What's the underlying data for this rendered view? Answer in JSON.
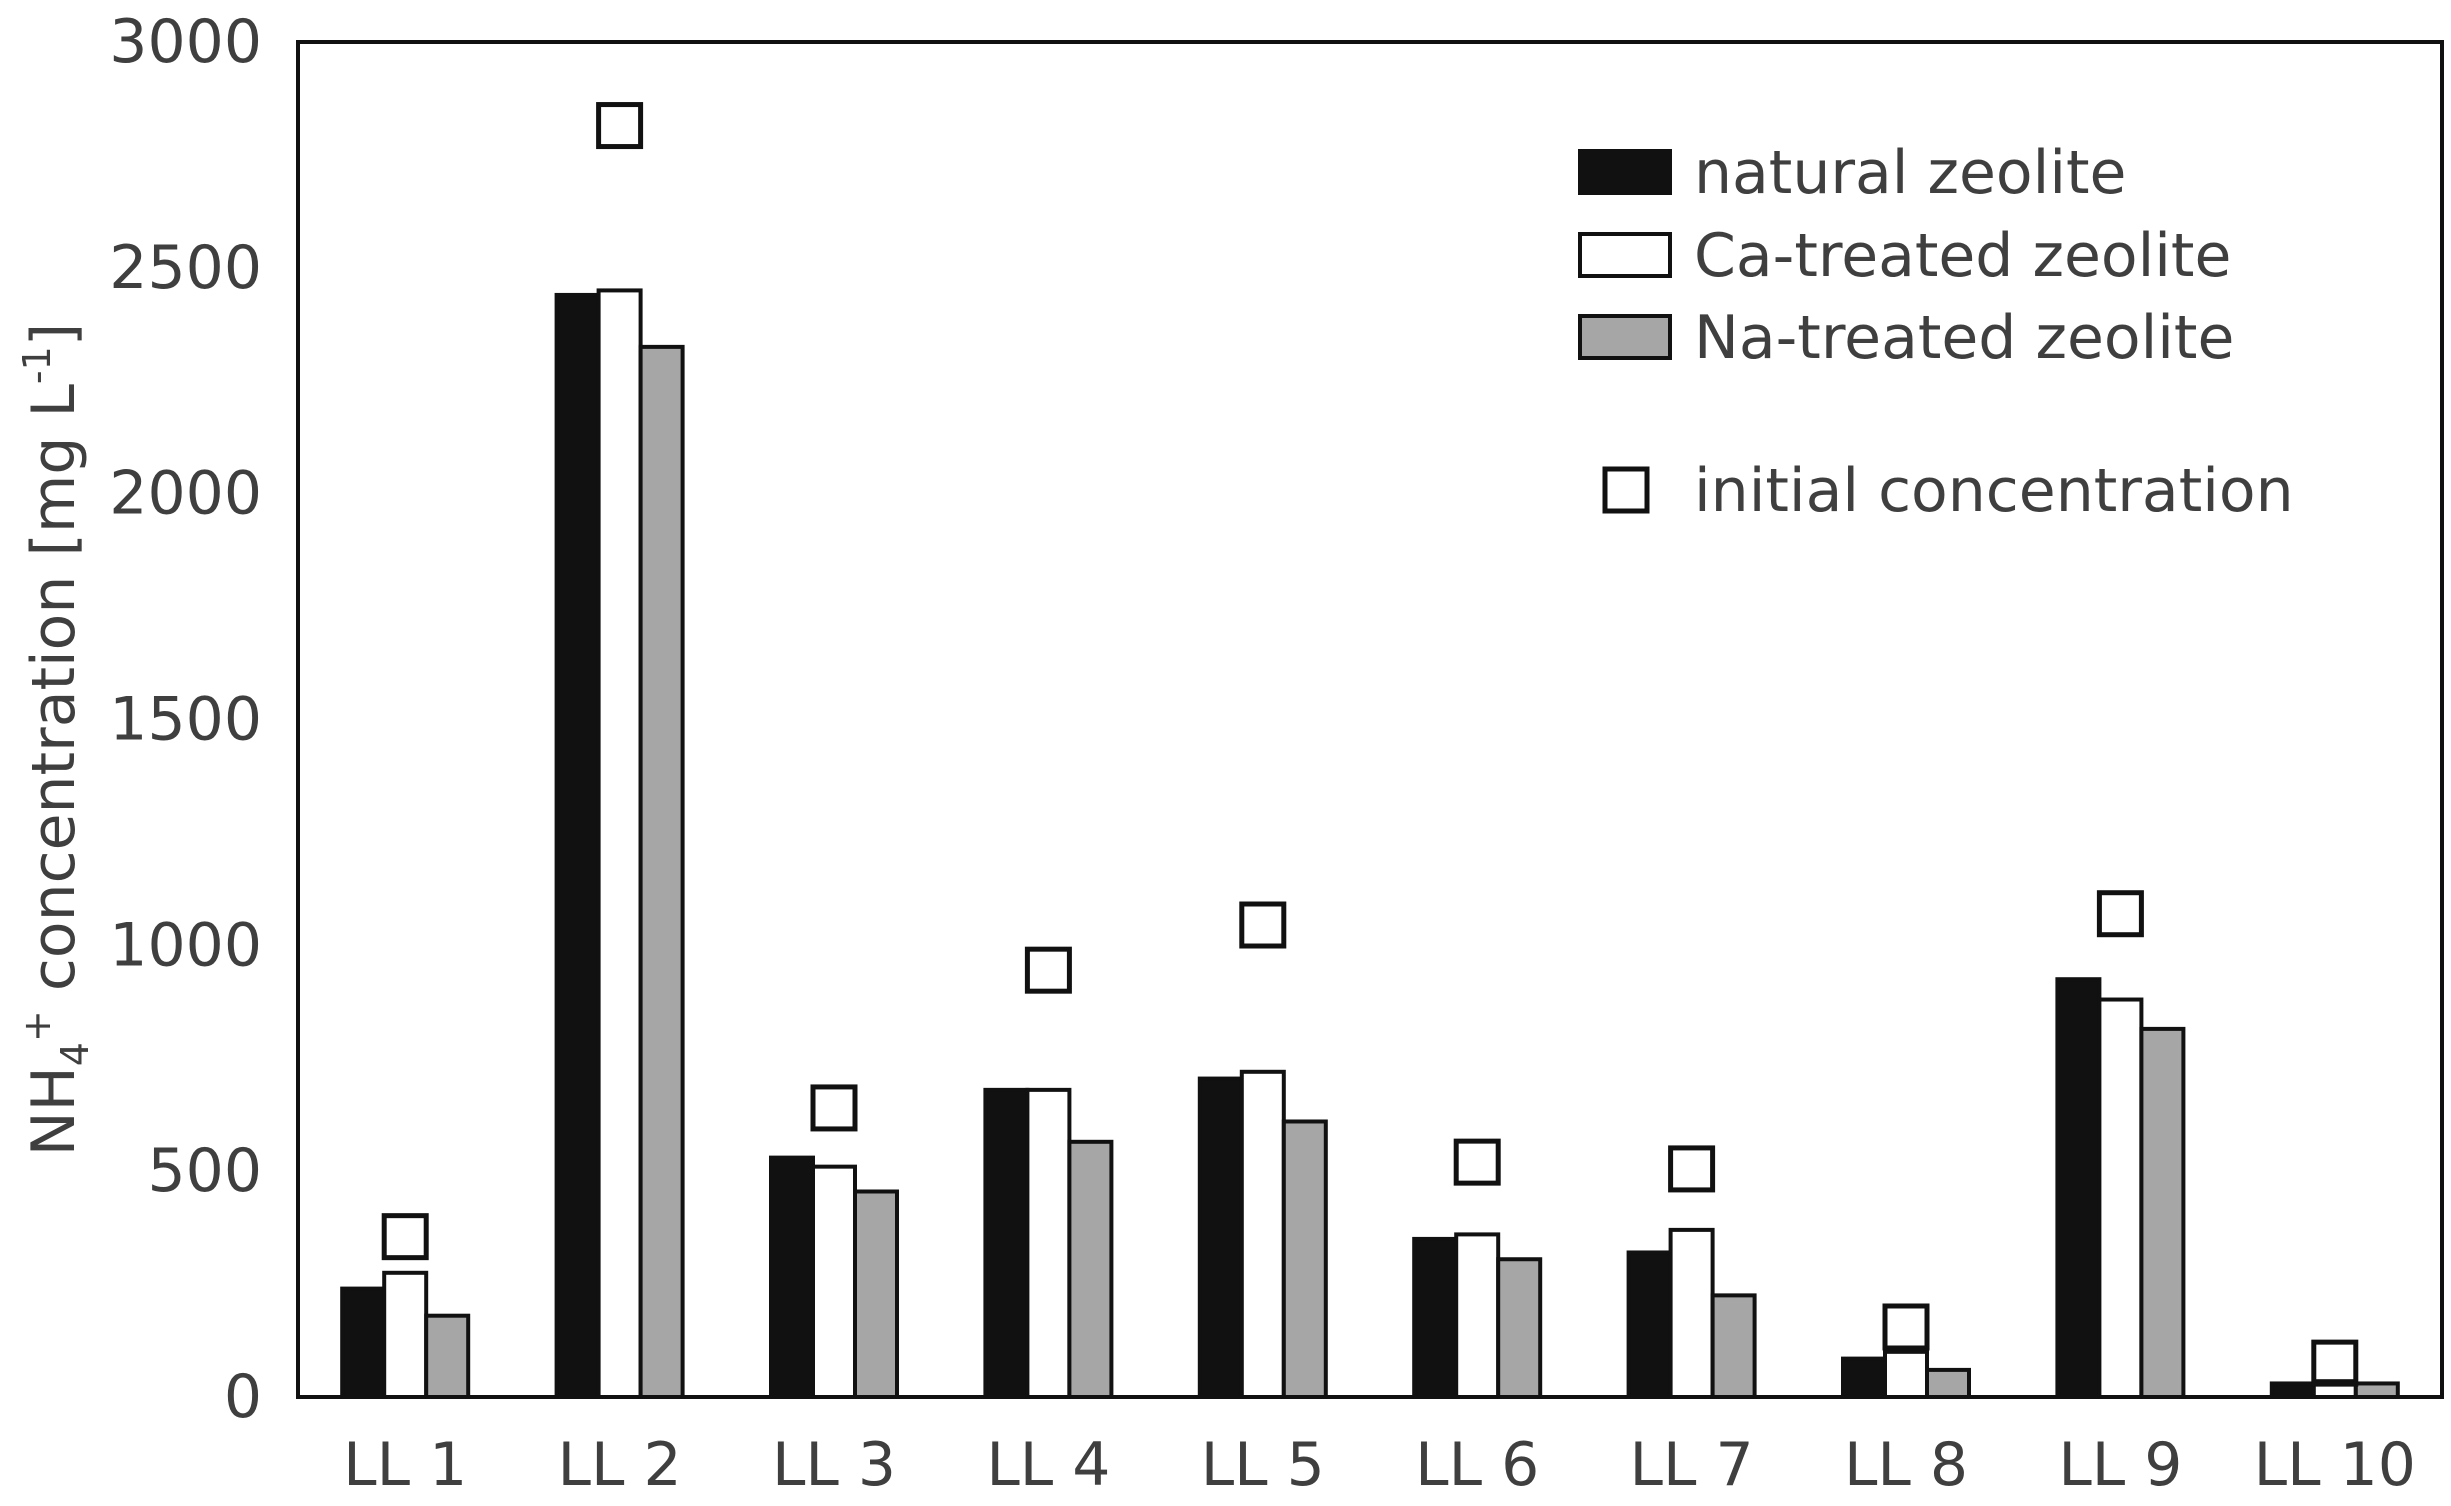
{
  "chart_data": {
    "type": "bar",
    "title": "",
    "xlabel": "",
    "ylabel": {
      "prefix": "NH",
      "sub": "4",
      "sup": "+",
      "middle": " concentration [mg L",
      "sup2": "-1",
      "suffix": "]"
    },
    "ylim": [
      0,
      3000
    ],
    "yticks": [
      0,
      500,
      1000,
      1500,
      2000,
      2500,
      3000
    ],
    "categories": [
      "LL 1",
      "LL 2",
      "LL 3",
      "LL 4",
      "LL 5",
      "LL 6",
      "LL 7",
      "LL 8",
      "LL 9",
      "LL 10"
    ],
    "series": [
      {
        "name": "natural zeolite",
        "color": "#111111",
        "values": [
          240,
          2440,
          530,
          680,
          705,
          350,
          320,
          85,
          925,
          30
        ]
      },
      {
        "name": "Ca-treated zeolite",
        "color": "#ffffff",
        "values": [
          275,
          2450,
          510,
          680,
          720,
          360,
          370,
          100,
          880,
          35
        ]
      },
      {
        "name": "Na-treated zeolite",
        "color": "#a6a6a6",
        "values": [
          180,
          2325,
          455,
          565,
          610,
          305,
          225,
          60,
          815,
          30
        ]
      }
    ],
    "markers": {
      "name": "initial concentration",
      "values": [
        355,
        2815,
        640,
        945,
        1045,
        520,
        505,
        155,
        1070,
        75
      ]
    },
    "legend_position": "top-right"
  }
}
